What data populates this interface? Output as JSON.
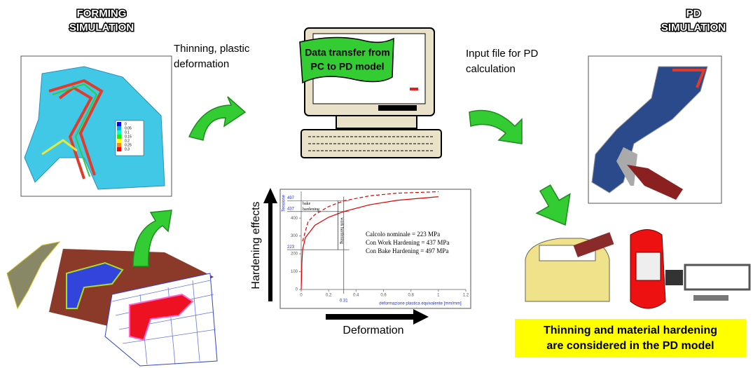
{
  "forming_title": [
    "FORMING",
    "SIMULATION"
  ],
  "thinning_label": [
    "Thinning, plastic",
    "deformation"
  ],
  "banner": [
    "Data transfer from",
    "PC to PD model"
  ],
  "input_label": [
    "Input file for PD",
    "calculation"
  ],
  "pd_title": [
    "PD",
    "SIMULATION"
  ],
  "contour_legend": [
    "0",
    "0.05",
    "0.1",
    "0.15",
    "0.2",
    "0.25",
    "0.3"
  ],
  "hardening_axis": "Hardening effects",
  "deformation_axis": "Deformation",
  "plot": {
    "y_label": "Tensione",
    "x_label": "deformazione plastica equivalente [mm/mm]",
    "xlim": [
      0,
      1.2
    ],
    "ylim": [
      0,
      550
    ],
    "xticks": [
      0,
      0.2,
      0.4,
      0.6,
      0.8,
      1,
      1.2
    ],
    "yticks": [
      0,
      100,
      200,
      300,
      400
    ],
    "marked_yticks": [
      223,
      437,
      497
    ],
    "marked_xtick": 0.31,
    "bake_label": [
      "bake",
      "hardening"
    ],
    "work_label": "work hardening",
    "notes": [
      "Calcolo nominale = 223 MPa",
      "Con Work Hardening = 437 MPa",
      "Con Bake Hardening = 497 MPa"
    ],
    "curves": [
      {
        "style": "solid",
        "color": "#e00000",
        "x": [
          0,
          0.005,
          0.01,
          0.03,
          0.1,
          0.2,
          0.31,
          0.5,
          0.7,
          1
        ],
        "values": [
          0,
          150,
          223,
          290,
          360,
          405,
          437,
          475,
          500,
          520
        ]
      },
      {
        "style": "dashed",
        "color": "#e00000",
        "x": [
          0.01,
          0.05,
          0.1,
          0.2,
          0.31,
          0.5,
          0.7,
          1
        ],
        "values": [
          270,
          380,
          420,
          465,
          497,
          525,
          540,
          548
        ]
      }
    ]
  },
  "conclusion": [
    "Thinning and material hardening",
    "are considered in the PD model"
  ]
}
